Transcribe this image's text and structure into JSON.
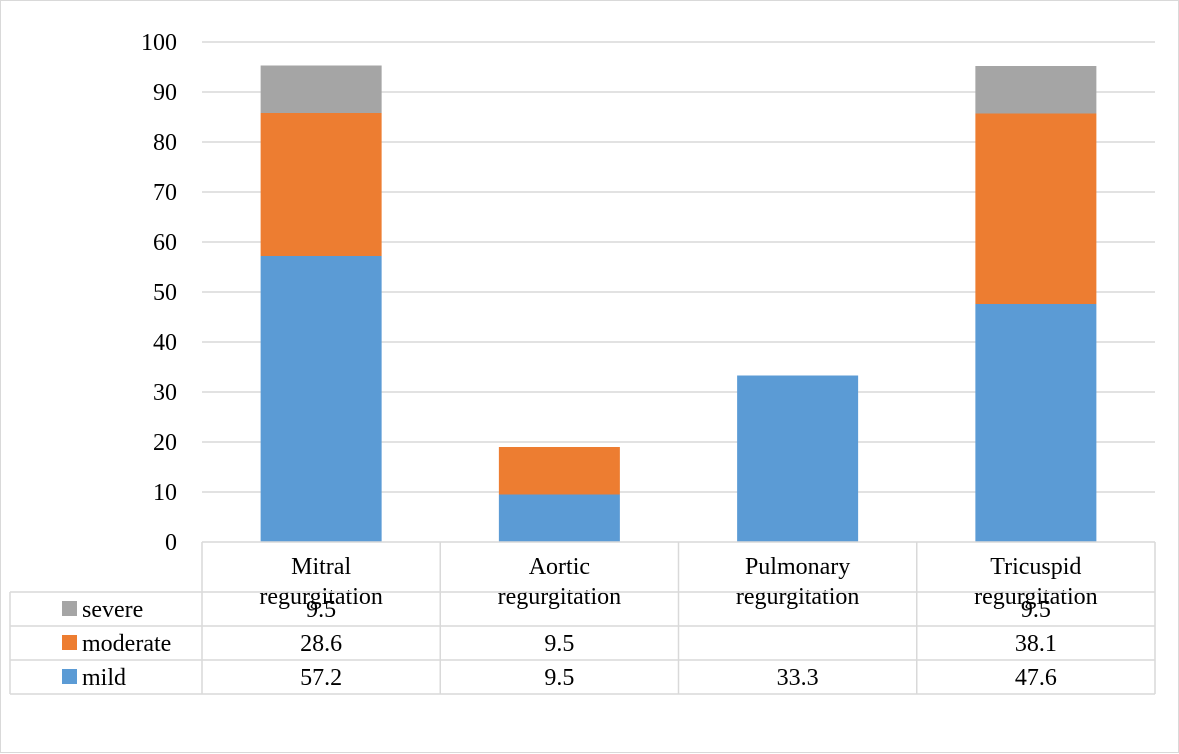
{
  "chart_data": {
    "type": "bar",
    "stacked": true,
    "categories": [
      [
        "Mitral",
        "regurgitation"
      ],
      [
        "Aortic",
        "regurgitation"
      ],
      [
        "Pulmonary",
        "regurgitation"
      ],
      [
        "Tricuspid",
        "regurgitation"
      ]
    ],
    "series": [
      {
        "name": "severe",
        "color": "#a5a5a5",
        "values": [
          9.5,
          null,
          null,
          9.5
        ],
        "labels": [
          "9.5",
          "",
          "",
          "9.5"
        ]
      },
      {
        "name": "moderate",
        "color": "#ed7d31",
        "values": [
          28.6,
          9.5,
          null,
          38.1
        ],
        "labels": [
          "28.6",
          "9.5",
          "",
          "38.1"
        ]
      },
      {
        "name": "mild",
        "color": "#5b9bd5",
        "values": [
          57.2,
          9.5,
          33.3,
          47.6
        ],
        "labels": [
          "57.2",
          "9.5",
          "33.3",
          "47.6"
        ]
      }
    ],
    "stack_order_bottom_to_top": [
      "mild",
      "moderate",
      "severe"
    ],
    "yticks": [
      "0",
      "10",
      "20",
      "30",
      "40",
      "50",
      "60",
      "70",
      "80",
      "90",
      "100"
    ],
    "ylim": [
      0,
      100
    ],
    "grid": true,
    "legend": "data-table",
    "title": "",
    "xlabel": "",
    "ylabel": ""
  }
}
